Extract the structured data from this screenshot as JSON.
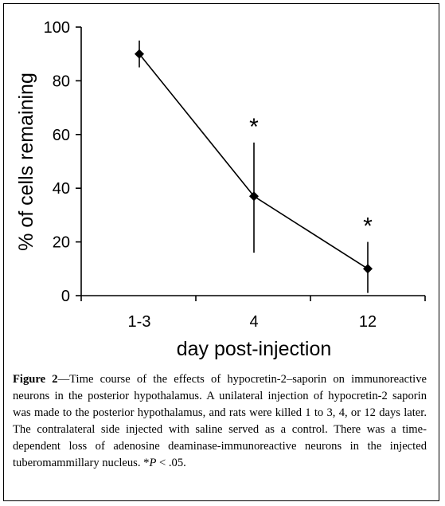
{
  "chart_data": {
    "type": "line",
    "categories": [
      "1-3",
      "4",
      "12"
    ],
    "values": [
      90,
      37,
      10
    ],
    "error_bars": {
      "upper": [
        95,
        57,
        20
      ],
      "lower": [
        85,
        16,
        1
      ]
    },
    "significance": [
      "",
      "*",
      "*"
    ],
    "xlabel": "day post-injection",
    "ylabel": "% of cells remaining",
    "ylim": [
      0,
      100
    ],
    "yticks": [
      0,
      20,
      40,
      60,
      80,
      100
    ],
    "grid": false,
    "marker": "diamond",
    "color": "#000000"
  },
  "caption": {
    "label": "Figure 2",
    "text_1": "—Time course of the effects of hypocretin-2–saporin on immunoreactive neurons in the posterior hypothalamus. A unilateral injection of hypocretin-2 saporin was made to the posterior hypothalamus, and rats were killed 1 to 3, 4, or 12 days later. The contralateral side injected with saline served as a control. There was a time-dependent loss of adenosine deaminase-immunoreactive neurons in the injected tuberomammillary nucleus. *",
    "p_symbol": "P",
    "text_2": " < .05."
  }
}
